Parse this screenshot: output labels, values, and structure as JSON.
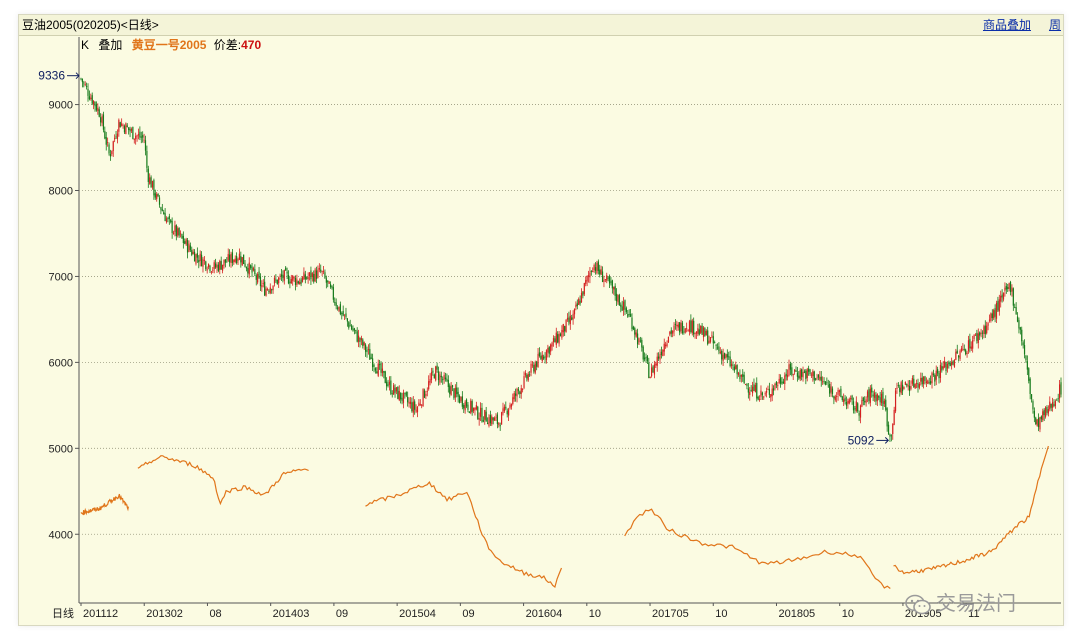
{
  "window": {
    "title": "豆油2005(020205)<日线>",
    "overlay_button": "商品叠加",
    "period_button": "周"
  },
  "info": {
    "k": "K",
    "overlay": "叠加",
    "overlay_name": "黄豆一号2005",
    "diff_label": "价差:",
    "diff_value": "470"
  },
  "colors": {
    "background": "#fbfbe2",
    "candle_up": "#d42020",
    "candle_down": "#157a1a",
    "overlay_line": "#e0751a",
    "grid": "#9a9a80",
    "annotation": "#102060"
  },
  "watermark": {
    "icon": "wechat-icon",
    "text": "交易法门"
  },
  "chart_data": {
    "type": "line",
    "ylim": [
      3200,
      9600
    ],
    "y_ticks": [
      4000,
      5000,
      6000,
      7000,
      8000,
      9000
    ],
    "x_axis_label": "日线",
    "x_ticks": [
      "201112",
      "201302",
      "08",
      "201403",
      "09",
      "201504",
      "09",
      "201604",
      "10",
      "201705",
      "10",
      "201805",
      "10",
      "201905",
      "11"
    ],
    "grid": "horizontal dotted",
    "annotations": [
      {
        "text": "9336",
        "value": 9336,
        "kind": "high",
        "date": "201112"
      },
      {
        "text": "5092",
        "value": 5092,
        "kind": "low",
        "date": "201905"
      }
    ],
    "series": [
      {
        "name": "豆油2005",
        "style": "candlestick",
        "x": [
          0,
          0.3,
          0.45,
          0.6,
          0.85,
          1.0,
          1.05,
          1.2,
          1.4,
          1.8,
          2.1,
          2.5,
          2.9,
          3.2,
          3.45,
          3.8,
          4.1,
          4.5,
          4.9,
          5.3,
          5.6,
          5.95,
          6.3,
          6.6,
          6.9,
          7.2,
          7.5,
          7.8,
          8.1,
          8.4,
          8.7,
          9.0,
          9.3,
          9.6,
          9.9,
          10.2,
          10.5,
          10.8,
          11.2,
          11.6,
          12.0,
          12.3,
          12.5,
          12.7,
          12.8,
          12.9,
          13.15,
          13.5,
          13.9,
          14.3,
          14.7,
          14.9,
          15.1,
          15.3,
          15.5
        ],
        "values": [
          9300,
          8900,
          8400,
          8800,
          8650,
          8600,
          8200,
          7900,
          7600,
          7250,
          7100,
          7250,
          6850,
          7000,
          6950,
          7050,
          6600,
          6150,
          5700,
          5450,
          5900,
          5600,
          5400,
          5300,
          5650,
          6000,
          6250,
          6550,
          7150,
          6850,
          6500,
          5850,
          6350,
          6450,
          6300,
          6050,
          5750,
          5600,
          5900,
          5850,
          5600,
          5450,
          5650,
          5550,
          5100,
          5700,
          5750,
          5850,
          6100,
          6400,
          6900,
          6200,
          5250,
          5450,
          5700
        ]
      },
      {
        "name": "黄豆一号2005",
        "style": "line",
        "segments": [
          {
            "x": [
              0,
              0.3,
              0.6,
              0.75
            ],
            "values": [
              4250,
              4300,
              4450,
              4300
            ]
          },
          {
            "x": [
              0.9,
              1.1,
              1.3,
              1.8,
              2.1,
              2.2,
              2.3,
              2.6,
              2.9,
              3.2,
              3.5,
              3.6
            ],
            "values": [
              4750,
              4850,
              4900,
              4800,
              4650,
              4350,
              4500,
              4550,
              4450,
              4700,
              4750,
              4750
            ]
          },
          {
            "x": [
              4.5,
              5.0,
              5.5,
              5.8,
              6.1,
              6.4,
              6.6,
              7.0,
              7.3,
              7.5,
              7.6
            ],
            "values": [
              4350,
              4450,
              4600,
              4400,
              4500,
              3900,
              3700,
              3550,
              3500,
              3400,
              3600
            ]
          },
          {
            "x": [
              8.6,
              8.8,
              9.0,
              9.3,
              9.8,
              10.3,
              10.8,
              11.3,
              11.8,
              12.3,
              12.6,
              12.8
            ],
            "values": [
              4000,
              4200,
              4300,
              4050,
              3900,
              3850,
              3650,
              3700,
              3800,
              3750,
              3450,
              3350
            ]
          },
          {
            "x": [
              12.85,
              13.0,
              13.5,
              14.0,
              14.4,
              14.8,
              15.0,
              15.2,
              15.3
            ],
            "values": [
              3650,
              3550,
              3600,
              3700,
              3800,
              4100,
              4200,
              4800,
              5050
            ]
          }
        ]
      }
    ]
  }
}
